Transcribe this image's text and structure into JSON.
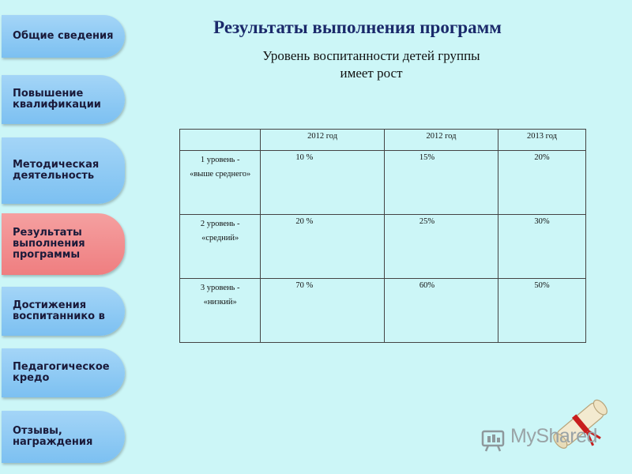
{
  "nav": {
    "items": [
      {
        "label": "Общие сведения",
        "active": false
      },
      {
        "label": "Повышение квалификации",
        "active": false
      },
      {
        "label": "Методическая деятельность",
        "active": false
      },
      {
        "label": "Результаты выполнения программы",
        "active": true
      },
      {
        "label": "Достижения воспитаннико в",
        "active": false
      },
      {
        "label": "Педагогическое кредо",
        "active": false
      },
      {
        "label": "Отзывы, награждения",
        "active": false
      }
    ]
  },
  "header": {
    "title": "Результаты выполнения программ",
    "subtitle_line1": "Уровень воспитанности детей группы",
    "subtitle_line2": "имеет рост"
  },
  "table": {
    "columns": [
      "",
      "2012 год",
      "2012 год",
      "2013 год"
    ],
    "rows": [
      {
        "label_line1": "1 уровень -",
        "label_line2": "«выше среднего»",
        "values": [
          "10 %",
          "15%",
          "20%"
        ]
      },
      {
        "label_line1": "2  уровень -",
        "label_line2": "«средний»",
        "values": [
          "20 %",
          "25%",
          "30%"
        ]
      },
      {
        "label_line1": "3 уровень -",
        "label_line2": "«низкий»",
        "values": [
          "70 %",
          "60%",
          "50%"
        ]
      }
    ]
  },
  "watermark": {
    "text": "MyShared",
    "logo_icon": "myshared-logo-icon",
    "decor_icon": "scroll-diploma-icon"
  },
  "colors": {
    "background": "#ccf6f7",
    "nav_button": "#8ccaf3",
    "nav_active": "#f08a8c",
    "title": "#1b2a6b"
  }
}
